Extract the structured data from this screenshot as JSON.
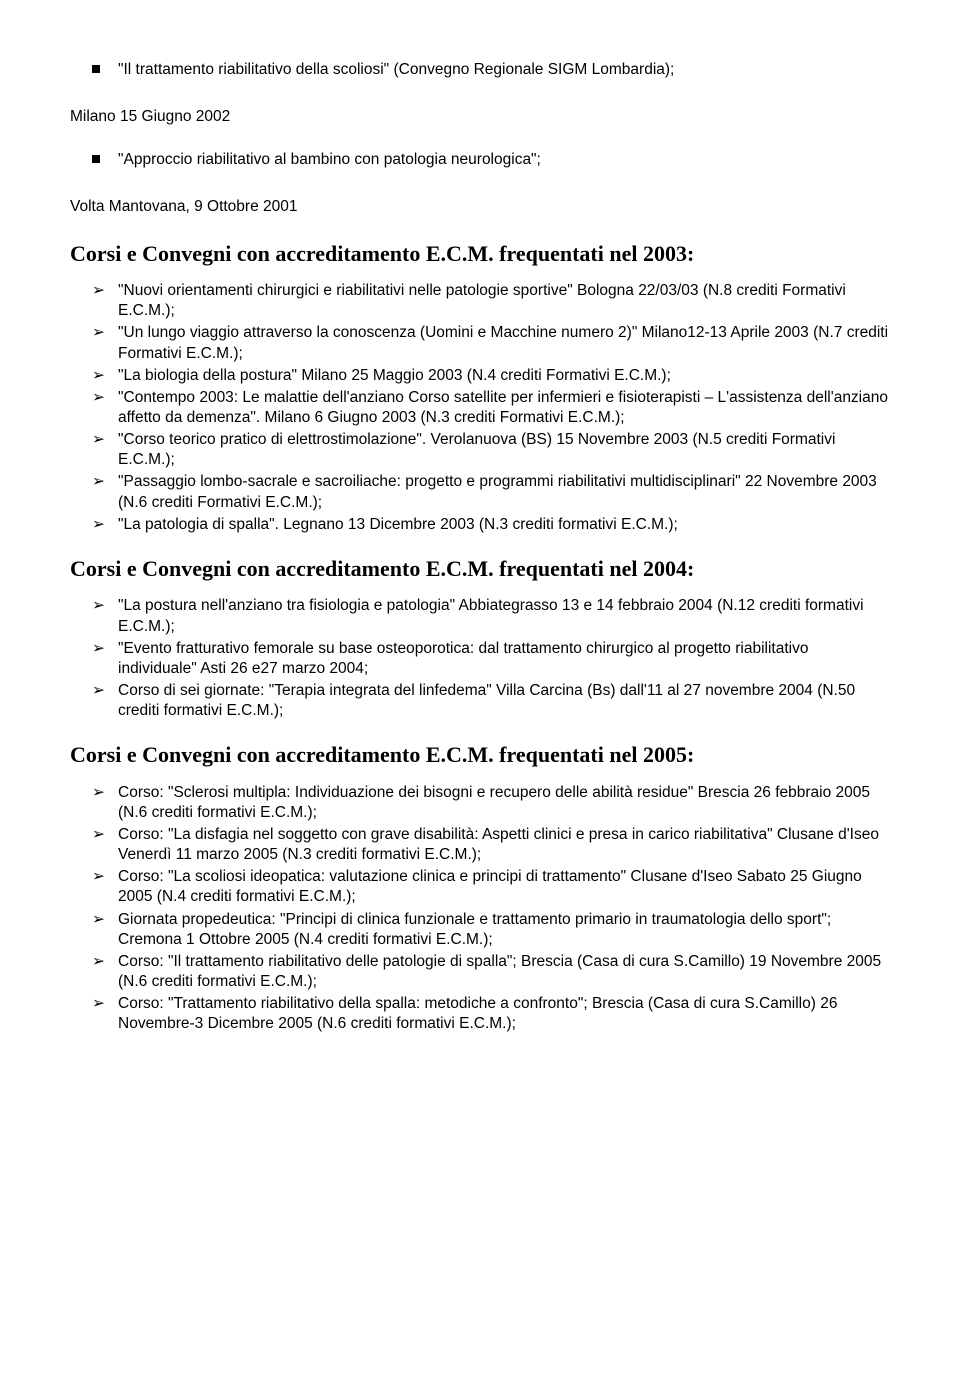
{
  "intro": {
    "bullets": [
      "\"Il trattamento riabilitativo della scoliosi\" (Convegno Regionale SIGM Lombardia);"
    ],
    "sub_line": "Milano 15 Giugno 2002",
    "bullets2": [
      "\"Approccio riabilitativo al bambino con patologia neurologica\";"
    ],
    "sub_line2": "Volta Mantovana, 9 Ottobre 2001"
  },
  "section2003": {
    "heading": "Corsi e Convegni con accreditamento E.C.M. frequentati nel 2003:",
    "items": [
      "\"Nuovi orientamenti chirurgici e riabilitativi nelle patologie sportive\" Bologna 22/03/03 (N.8 crediti Formativi E.C.M.);",
      "\"Un lungo viaggio attraverso la conoscenza (Uomini e Macchine numero 2)\" Milano12-13 Aprile 2003 (N.7 crediti Formativi E.C.M.);",
      "\"La biologia della postura\" Milano 25 Maggio 2003 (N.4 crediti Formativi E.C.M.);",
      "\"Contempo 2003: Le malattie dell'anziano Corso satellite per infermieri e fisioterapisti – L'assistenza dell'anziano affetto da demenza\". Milano 6 Giugno 2003 (N.3 crediti Formativi E.C.M.);",
      " \"Corso teorico pratico di elettrostimolazione\". Verolanuova (BS) 15 Novembre 2003 (N.5 crediti Formativi E.C.M.);",
      "\"Passaggio lombo-sacrale e sacroiliache: progetto e programmi riabilitativi multidisciplinari\" 22 Novembre 2003 (N.6 crediti Formativi E.C.M.);",
      "\"La patologia di spalla\". Legnano 13 Dicembre 2003 (N.3 crediti formativi E.C.M.);"
    ]
  },
  "section2004": {
    "heading": "Corsi e Convegni con accreditamento E.C.M. frequentati nel 2004:",
    "items": [
      "\"La postura nell'anziano tra fisiologia e patologia\" Abbiategrasso 13 e 14 febbraio 2004 (N.12 crediti formativi E.C.M.);",
      "\"Evento fratturativo femorale su base osteoporotica: dal trattamento chirurgico al progetto riabilitativo individuale\" Asti 26 e27 marzo 2004;",
      "Corso di sei giornate: \"Terapia integrata del linfedema\" Villa Carcina (Bs) dall'11 al 27 novembre 2004 (N.50 crediti formativi E.C.M.);"
    ]
  },
  "section2005": {
    "heading": "Corsi e Convegni con accreditamento E.C.M. frequentati nel 2005:",
    "items": [
      "Corso: \"Sclerosi multipla: Individuazione dei bisogni e recupero delle abilità residue\" Brescia 26 febbraio 2005 (N.6 crediti formativi E.C.M.);",
      "Corso: \"La disfagia nel soggetto con grave disabilità: Aspetti clinici e presa in carico riabilitativa\" Clusane d'Iseo Venerdì 11 marzo 2005 (N.3 crediti formativi E.C.M.);",
      "Corso: \"La scoliosi ideopatica: valutazione clinica e principi di trattamento\" Clusane d'Iseo Sabato 25 Giugno 2005 (N.4 crediti formativi E.C.M.);",
      "Giornata propedeutica: \"Principi di clinica funzionale e trattamento primario in traumatologia dello sport\"; Cremona 1 Ottobre 2005 (N.4 crediti formativi E.C.M.);",
      "Corso: \"Il trattamento riabilitativo delle patologie di spalla\"; Brescia (Casa di cura S.Camillo) 19 Novembre 2005 (N.6 crediti formativi E.C.M.);",
      "Corso: \"Trattamento riabilitativo della spalla: metodiche a confronto\"; Brescia (Casa di cura S.Camillo) 26 Novembre-3 Dicembre 2005 (N.6 crediti formativi E.C.M.);"
    ]
  }
}
